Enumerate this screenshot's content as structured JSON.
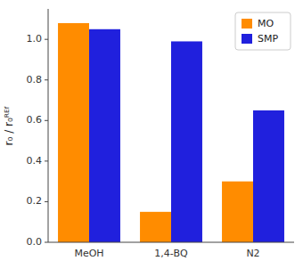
{
  "chart_data": {
    "type": "bar",
    "categories": [
      "MeOH",
      "1,4-BQ",
      "N2"
    ],
    "series": [
      {
        "name": "MO",
        "color": "#FF8C00",
        "values": [
          1.08,
          0.15,
          0.3
        ]
      },
      {
        "name": "SMP",
        "color": "#2020DD",
        "values": [
          1.05,
          0.99,
          0.65
        ]
      }
    ],
    "ylabel": "r₀ / r₀ᴿᴱᶠ",
    "ylim": [
      0,
      1.15
    ],
    "yticks": [
      {
        "value": 0.0,
        "label": "0.0"
      },
      0.2,
      0.4,
      0.6,
      0.8,
      {
        "value": 1.0,
        "label": "1.0"
      }
    ],
    "legend": "upper right",
    "grid": false
  }
}
